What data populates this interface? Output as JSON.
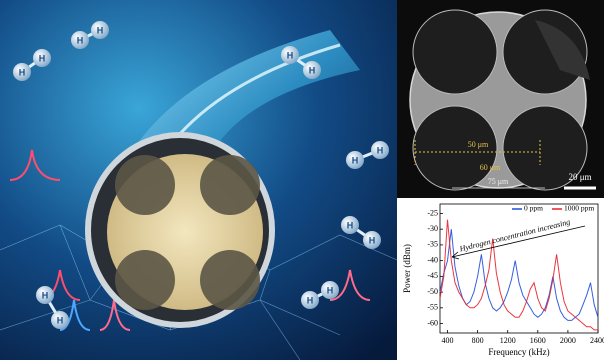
{
  "illustration": {
    "atom_labels": [
      "H",
      "H",
      "H",
      "H",
      "H",
      "H",
      "H",
      "H",
      "H",
      "H",
      "H",
      "H",
      "H",
      "H"
    ]
  },
  "sem_image": {
    "labels": [
      "50 μm",
      "60 μm",
      "75 μm"
    ],
    "scale_bar": "20 μm"
  },
  "chart_data": {
    "type": "line",
    "x_label": "Frequency (kHz)",
    "y_label": "Power (dBm)",
    "annotation": "Hydrogen concentration increasing",
    "x": [
      300,
      350,
      400,
      450,
      500,
      550,
      600,
      650,
      700,
      750,
      800,
      850,
      900,
      950,
      1000,
      1050,
      1100,
      1150,
      1200,
      1250,
      1300,
      1350,
      1400,
      1450,
      1500,
      1550,
      1600,
      1650,
      1700,
      1750,
      1800,
      1850,
      1900,
      1950,
      2000,
      2050,
      2100,
      2150,
      2200,
      2250,
      2300,
      2350,
      2400
    ],
    "series": [
      {
        "name": "0 ppm",
        "color": "#1f4fd8",
        "values": [
          -50,
          -44,
          -40,
          -30,
          -42,
          -48,
          -52,
          -54,
          -53,
          -50,
          -45,
          -38,
          -47,
          -52,
          -55,
          -56,
          -55,
          -53,
          -50,
          -46,
          -40,
          -47,
          -51,
          -53,
          -55,
          -57,
          -58,
          -57,
          -55,
          -51,
          -45,
          -52,
          -56,
          -58,
          -59,
          -59,
          -58,
          -57,
          -54,
          -51,
          -47,
          -54,
          -58
        ]
      },
      {
        "name": "1000 ppm",
        "color": "#e8202a",
        "values": [
          -52,
          -45,
          -27,
          -40,
          -47,
          -50,
          -52,
          -54,
          -55,
          -55,
          -54,
          -52,
          -48,
          -43,
          -33,
          -44,
          -50,
          -54,
          -56,
          -57,
          -58,
          -58,
          -56,
          -53,
          -49,
          -47,
          -52,
          -55,
          -56,
          -52,
          -46,
          -38,
          -47,
          -53,
          -56,
          -57,
          -58,
          -59,
          -60,
          -61,
          -61,
          -62,
          -62
        ]
      }
    ],
    "xlim": [
      300,
      2400
    ],
    "xticks": [
      400,
      800,
      1200,
      1600,
      2000,
      2400
    ],
    "ylim": [
      -63,
      -22
    ],
    "yticks": [
      -25,
      -30,
      -35,
      -40,
      -45,
      -50,
      -55,
      -60
    ],
    "legend": "top-right"
  }
}
